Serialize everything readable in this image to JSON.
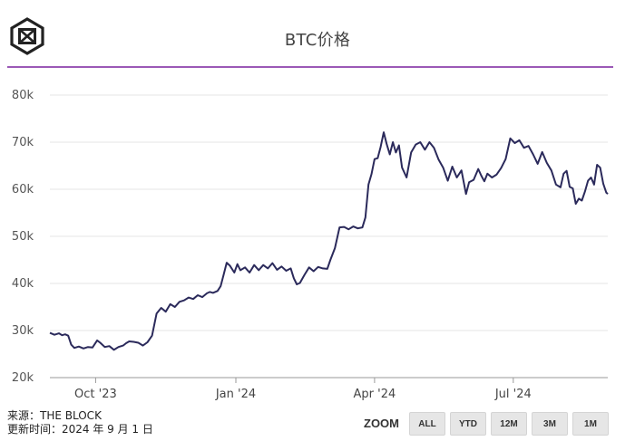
{
  "header": {
    "title": "BTC价格"
  },
  "source": {
    "line1": "来源：THE BLOCK",
    "line2": "更新时间：2024 年 9 月 1 日"
  },
  "zoom": {
    "label": "ZOOM",
    "buttons": [
      "ALL",
      "YTD",
      "12M",
      "3M",
      "1M"
    ]
  },
  "colors": {
    "line": "#2b2a5b",
    "accent": "#9b59b6",
    "grid": "#e6e6e6"
  },
  "chart_data": {
    "type": "line",
    "title": "BTC价格",
    "xlabel": "",
    "ylabel": "",
    "ylim": [
      20000,
      80000
    ],
    "xlim": [
      "2023-09-01",
      "2024-09-01"
    ],
    "grid": true,
    "y_ticks": [
      "20k",
      "30k",
      "40k",
      "50k",
      "60k",
      "70k",
      "80k"
    ],
    "x_ticks": [
      {
        "date": "2023-10-01",
        "label": "Oct '23"
      },
      {
        "date": "2024-01-01",
        "label": "Jan '24"
      },
      {
        "date": "2024-04-01",
        "label": "Apr '24"
      },
      {
        "date": "2024-07-01",
        "label": "Jul '24"
      }
    ],
    "series": [
      {
        "values": [
          [
            "2023-09-01",
            29500
          ],
          [
            "2023-09-04",
            29100
          ],
          [
            "2023-09-07",
            29400
          ],
          [
            "2023-09-09",
            29000
          ],
          [
            "2023-09-11",
            29200
          ],
          [
            "2023-09-13",
            28900
          ],
          [
            "2023-09-15",
            27000
          ],
          [
            "2023-09-17",
            26300
          ],
          [
            "2023-09-20",
            26600
          ],
          [
            "2023-09-23",
            26200
          ],
          [
            "2023-09-26",
            26500
          ],
          [
            "2023-09-29",
            26400
          ],
          [
            "2023-10-02",
            27900
          ],
          [
            "2023-10-04",
            27400
          ],
          [
            "2023-10-07",
            26500
          ],
          [
            "2023-10-10",
            26700
          ],
          [
            "2023-10-13",
            25900
          ],
          [
            "2023-10-16",
            26500
          ],
          [
            "2023-10-19",
            26800
          ],
          [
            "2023-10-21",
            27300
          ],
          [
            "2023-10-23",
            27700
          ],
          [
            "2023-10-26",
            27600
          ],
          [
            "2023-10-29",
            27400
          ],
          [
            "2023-11-01",
            26800
          ],
          [
            "2023-11-04",
            27500
          ],
          [
            "2023-11-07",
            28900
          ],
          [
            "2023-11-10",
            33600
          ],
          [
            "2023-11-13",
            34800
          ],
          [
            "2023-11-16",
            34000
          ],
          [
            "2023-11-19",
            35600
          ],
          [
            "2023-11-22",
            35000
          ],
          [
            "2023-11-25",
            36100
          ],
          [
            "2023-11-28",
            36400
          ],
          [
            "2023-12-01",
            37000
          ],
          [
            "2023-12-04",
            36700
          ],
          [
            "2023-12-07",
            37500
          ],
          [
            "2023-12-10",
            37100
          ],
          [
            "2023-12-13",
            37900
          ],
          [
            "2023-12-15",
            38200
          ],
          [
            "2023-12-17",
            38000
          ],
          [
            "2023-12-20",
            38400
          ],
          [
            "2023-12-22",
            39400
          ],
          [
            "2023-12-24",
            41900
          ],
          [
            "2023-12-26",
            44400
          ],
          [
            "2023-12-28",
            43800
          ],
          [
            "2023-12-31",
            42300
          ],
          [
            "2024-01-02",
            44100
          ],
          [
            "2024-01-04",
            42800
          ],
          [
            "2024-01-07",
            43400
          ],
          [
            "2024-01-10",
            42300
          ],
          [
            "2024-01-13",
            43900
          ],
          [
            "2024-01-16",
            42800
          ],
          [
            "2024-01-19",
            43900
          ],
          [
            "2024-01-22",
            43200
          ],
          [
            "2024-01-25",
            44300
          ],
          [
            "2024-01-28",
            42900
          ],
          [
            "2024-01-31",
            43600
          ],
          [
            "2024-02-03",
            42700
          ],
          [
            "2024-02-06",
            43200
          ],
          [
            "2024-02-08",
            41100
          ],
          [
            "2024-02-10",
            39800
          ],
          [
            "2024-02-12",
            40100
          ],
          [
            "2024-02-15",
            41800
          ],
          [
            "2024-02-18",
            43400
          ],
          [
            "2024-02-21",
            42600
          ],
          [
            "2024-02-24",
            43500
          ],
          [
            "2024-02-27",
            43200
          ],
          [
            "2024-03-01",
            43100
          ],
          [
            "2024-03-03",
            45000
          ],
          [
            "2024-03-06",
            47500
          ],
          [
            "2024-03-09",
            51900
          ],
          [
            "2024-03-12",
            52000
          ],
          [
            "2024-03-15",
            51500
          ],
          [
            "2024-03-18",
            52100
          ],
          [
            "2024-03-21",
            51700
          ],
          [
            "2024-03-24",
            51900
          ],
          [
            "2024-03-26",
            54000
          ],
          [
            "2024-03-28",
            61000
          ],
          [
            "2024-03-30",
            63200
          ],
          [
            "2024-04-01",
            66400
          ],
          [
            "2024-04-03",
            66600
          ],
          [
            "2024-04-05",
            69000
          ],
          [
            "2024-04-07",
            72100
          ],
          [
            "2024-04-09",
            69500
          ],
          [
            "2024-04-11",
            67400
          ],
          [
            "2024-04-13",
            70000
          ],
          [
            "2024-04-15",
            67800
          ],
          [
            "2024-04-17",
            69300
          ],
          [
            "2024-04-19",
            64600
          ],
          [
            "2024-04-22",
            62500
          ],
          [
            "2024-04-25",
            67800
          ],
          [
            "2024-04-28",
            69500
          ],
          [
            "2024-05-01",
            70000
          ],
          [
            "2024-05-04",
            68400
          ],
          [
            "2024-05-07",
            70000
          ],
          [
            "2024-05-10",
            68800
          ],
          [
            "2024-05-13",
            66300
          ],
          [
            "2024-05-16",
            64600
          ],
          [
            "2024-05-19",
            61800
          ],
          [
            "2024-05-22",
            64800
          ],
          [
            "2024-05-25",
            62500
          ],
          [
            "2024-05-28",
            64000
          ],
          [
            "2024-05-31",
            59000
          ],
          [
            "2024-06-02",
            61500
          ],
          [
            "2024-06-05",
            62000
          ],
          [
            "2024-06-08",
            64300
          ],
          [
            "2024-06-10",
            62900
          ],
          [
            "2024-06-12",
            61700
          ],
          [
            "2024-06-14",
            63300
          ],
          [
            "2024-06-17",
            62500
          ],
          [
            "2024-06-20",
            63100
          ],
          [
            "2024-06-23",
            64500
          ],
          [
            "2024-06-26",
            66400
          ],
          [
            "2024-06-29",
            70800
          ],
          [
            "2024-07-02",
            69800
          ],
          [
            "2024-07-05",
            70400
          ],
          [
            "2024-07-08",
            68800
          ],
          [
            "2024-07-11",
            69200
          ],
          [
            "2024-07-14",
            67400
          ],
          [
            "2024-07-17",
            65400
          ],
          [
            "2024-07-20",
            67900
          ],
          [
            "2024-07-23",
            65600
          ],
          [
            "2024-07-26",
            64000
          ],
          [
            "2024-07-29",
            61000
          ],
          [
            "2024-08-01",
            60400
          ],
          [
            "2024-08-03",
            63300
          ],
          [
            "2024-08-05",
            63900
          ],
          [
            "2024-08-07",
            60500
          ],
          [
            "2024-08-09",
            60200
          ],
          [
            "2024-08-11",
            56900
          ],
          [
            "2024-08-13",
            58000
          ],
          [
            "2024-08-15",
            57600
          ],
          [
            "2024-08-17",
            59500
          ],
          [
            "2024-08-19",
            61800
          ],
          [
            "2024-08-21",
            62500
          ],
          [
            "2024-08-23",
            61000
          ],
          [
            "2024-08-25",
            65200
          ],
          [
            "2024-08-27",
            64600
          ],
          [
            "2024-08-29",
            61200
          ],
          [
            "2024-08-31",
            59300
          ],
          [
            "2024-09-01",
            59000
          ]
        ]
      }
    ]
  }
}
